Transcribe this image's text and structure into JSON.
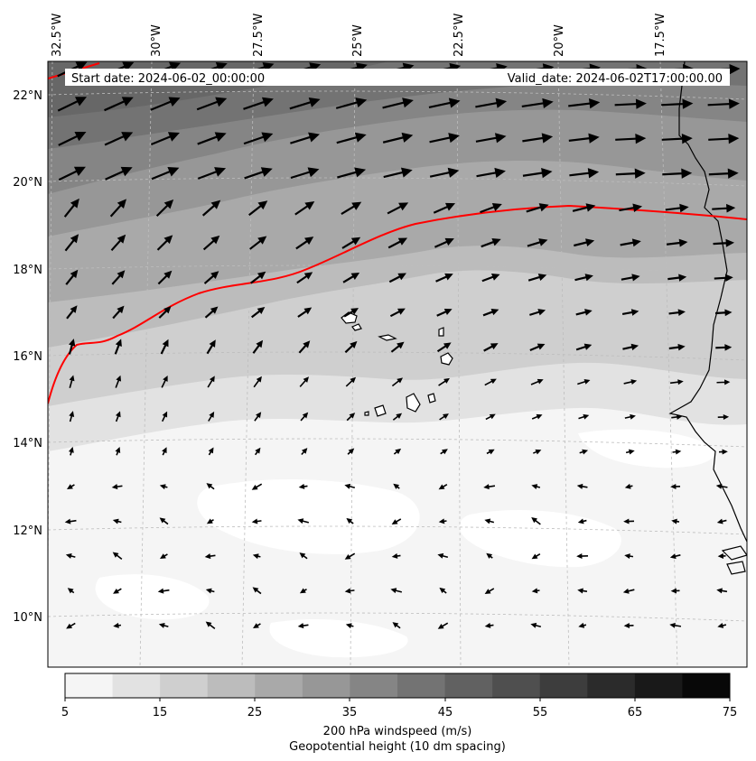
{
  "map": {
    "top_labels": [
      "32.5°W",
      "30°W",
      "27.5°W",
      "25°W",
      "22.5°W",
      "20°W",
      "17.5°W"
    ],
    "left_labels": [
      "22°N",
      "20°N",
      "18°N",
      "16°N",
      "14°N",
      "12°N",
      "10°N"
    ],
    "start_date": "Start date: 2024-06-02_00:00:00",
    "valid_date": "Valid_date: 2024-06-02T17:00:00.00"
  },
  "colorbar": {
    "ticks": [
      "5",
      "15",
      "25",
      "35",
      "45",
      "55",
      "65",
      "75"
    ],
    "colors": [
      "#f5f5f5",
      "#e2e2e2",
      "#cfcfcf",
      "#bcbcbc",
      "#a9a9a9",
      "#979797",
      "#858585",
      "#737373",
      "#616161",
      "#4f4f4f",
      "#3d3d3d",
      "#2b2b2b",
      "#191919",
      "#080808"
    ],
    "label": "200 hPa windspeed (m/s)",
    "sublabel": "Geopotential height (10 dm spacing)",
    "sublabel_color": "#ff0000"
  },
  "contour_color": "#ff0000"
}
